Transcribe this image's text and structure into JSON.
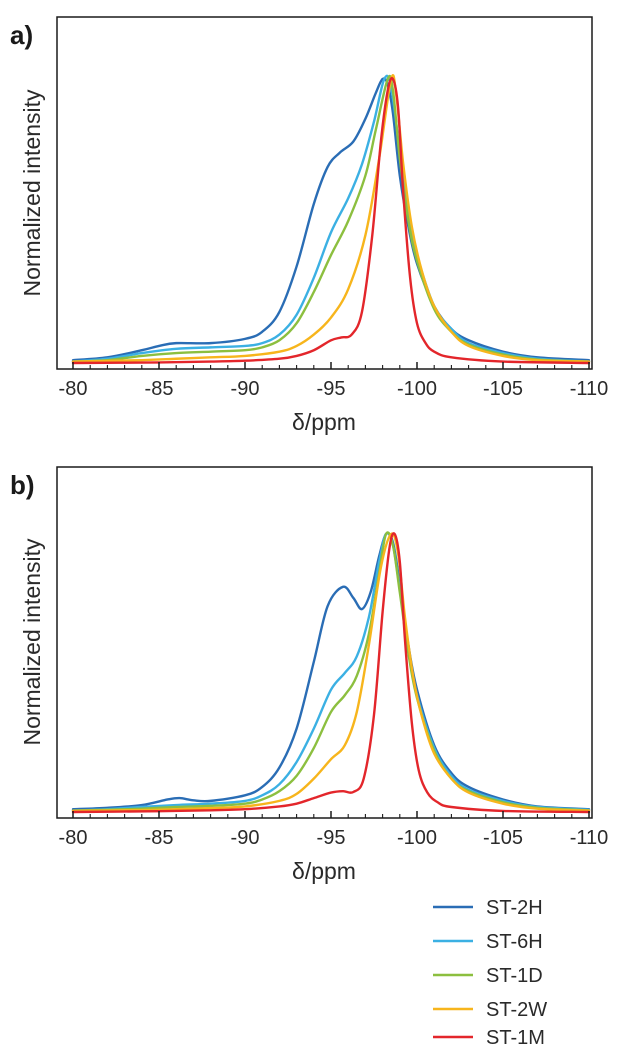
{
  "colors": {
    "ST-2H": "#2a6db5",
    "ST-6H": "#3bb0e3",
    "ST-1D": "#8cbf3f",
    "ST-2W": "#f7b51c",
    "ST-1M": "#e3262b"
  },
  "legend": {
    "placement": "bottom-right",
    "entries": [
      "ST-2H",
      "ST-6H",
      "ST-1D",
      "ST-2W",
      "ST-1M"
    ]
  },
  "chart_data": [
    {
      "type": "line",
      "panel_label": "a)",
      "xlabel": "δ/ppm",
      "ylabel": "Normalized intensity",
      "xlim": [
        -80,
        -110
      ],
      "xticks": [
        "-80",
        "-85",
        "-90",
        "-95",
        "-100",
        "-105",
        "-110"
      ],
      "ylim": [
        0,
        1.1
      ],
      "grid": false,
      "series": [
        {
          "name": "ST-2H",
          "x": [
            -80,
            -82,
            -84,
            -85,
            -86,
            -88,
            -90,
            -91,
            -92,
            -93,
            -94,
            -94.8,
            -95.5,
            -96.3,
            -97,
            -97.6,
            -98,
            -98.3,
            -98.6,
            -99,
            -99.5,
            -100,
            -101,
            -102,
            -103,
            -105,
            -107,
            -110
          ],
          "y": [
            0.01,
            0.02,
            0.045,
            0.06,
            0.07,
            0.07,
            0.085,
            0.11,
            0.18,
            0.34,
            0.56,
            0.69,
            0.74,
            0.78,
            0.86,
            0.95,
            1.0,
            0.98,
            0.88,
            0.66,
            0.48,
            0.35,
            0.2,
            0.12,
            0.08,
            0.04,
            0.02,
            0.01
          ]
        },
        {
          "name": "ST-6H",
          "x": [
            -80,
            -82,
            -84,
            -86,
            -88,
            -90,
            -91,
            -92,
            -93,
            -94,
            -95,
            -96,
            -96.8,
            -97.5,
            -98.1,
            -98.5,
            -99,
            -99.5,
            -100,
            -101,
            -102,
            -103,
            -105,
            -107,
            -110
          ],
          "y": [
            0.005,
            0.015,
            0.035,
            0.05,
            0.055,
            0.06,
            0.07,
            0.1,
            0.17,
            0.3,
            0.46,
            0.58,
            0.7,
            0.85,
            1.0,
            0.97,
            0.74,
            0.52,
            0.38,
            0.2,
            0.12,
            0.07,
            0.035,
            0.015,
            0.005
          ]
        },
        {
          "name": "ST-1D",
          "x": [
            -80,
            -82,
            -84,
            -86,
            -88,
            -90,
            -91,
            -92,
            -93,
            -94,
            -95,
            -96,
            -97,
            -97.6,
            -98.3,
            -98.6,
            -99,
            -99.5,
            -100,
            -101,
            -102,
            -103,
            -105,
            -107,
            -110
          ],
          "y": [
            0.005,
            0.01,
            0.025,
            0.035,
            0.04,
            0.045,
            0.055,
            0.08,
            0.14,
            0.25,
            0.38,
            0.5,
            0.66,
            0.82,
            1.0,
            0.96,
            0.72,
            0.5,
            0.36,
            0.19,
            0.11,
            0.065,
            0.03,
            0.012,
            0.005
          ]
        },
        {
          "name": "ST-2W",
          "x": [
            -80,
            -84,
            -86,
            -88,
            -90,
            -92,
            -93,
            -94,
            -95,
            -96,
            -97,
            -97.8,
            -98.5,
            -98.8,
            -99.2,
            -99.7,
            -100.3,
            -101,
            -102,
            -103,
            -105,
            -107,
            -110
          ],
          "y": [
            0.005,
            0.01,
            0.015,
            0.02,
            0.025,
            0.04,
            0.06,
            0.1,
            0.16,
            0.26,
            0.45,
            0.72,
            1.0,
            0.94,
            0.7,
            0.48,
            0.32,
            0.2,
            0.11,
            0.06,
            0.025,
            0.01,
            0.005
          ]
        },
        {
          "name": "ST-1M",
          "x": [
            -80,
            -85,
            -88,
            -90,
            -92,
            -93,
            -94,
            -95,
            -95.6,
            -96.2,
            -96.8,
            -97.4,
            -97.9,
            -98.3,
            -98.6,
            -98.9,
            -99.2,
            -99.6,
            -100,
            -100.5,
            -101,
            -102,
            -105,
            -110
          ],
          "y": [
            0.0,
            0.002,
            0.005,
            0.008,
            0.015,
            0.025,
            0.045,
            0.08,
            0.09,
            0.1,
            0.18,
            0.45,
            0.78,
            0.96,
            1.0,
            0.9,
            0.6,
            0.3,
            0.14,
            0.07,
            0.04,
            0.02,
            0.005,
            0.0
          ]
        }
      ]
    },
    {
      "type": "line",
      "panel_label": "b)",
      "xlabel": "δ/ppm",
      "ylabel": "Normalized intensity",
      "xlim": [
        -80,
        -110
      ],
      "xticks": [
        "-80",
        "-85",
        "-90",
        "-95",
        "-100",
        "-105",
        "-110"
      ],
      "ylim": [
        0,
        1.1
      ],
      "grid": false,
      "series": [
        {
          "name": "ST-2H",
          "x": [
            -80,
            -82,
            -84,
            -85.5,
            -86.2,
            -87,
            -88,
            -90,
            -91,
            -92,
            -93,
            -94,
            -94.8,
            -95.7,
            -96.3,
            -96.8,
            -97.3,
            -97.8,
            -98.2,
            -98.6,
            -99,
            -99.5,
            -100,
            -101,
            -102,
            -103,
            -105,
            -107,
            -110
          ],
          "y": [
            0.01,
            0.015,
            0.025,
            0.045,
            0.05,
            0.042,
            0.04,
            0.06,
            0.09,
            0.16,
            0.3,
            0.54,
            0.74,
            0.81,
            0.77,
            0.73,
            0.79,
            0.92,
            1.0,
            0.97,
            0.82,
            0.6,
            0.44,
            0.24,
            0.14,
            0.09,
            0.045,
            0.02,
            0.01
          ]
        },
        {
          "name": "ST-6H",
          "x": [
            -80,
            -82,
            -84,
            -86,
            -88,
            -90,
            -91,
            -92,
            -93,
            -94,
            -95,
            -95.8,
            -96.5,
            -97.2,
            -97.8,
            -98.2,
            -98.6,
            -99,
            -99.5,
            -100,
            -101,
            -102,
            -103,
            -105,
            -107,
            -110
          ],
          "y": [
            0.005,
            0.01,
            0.018,
            0.025,
            0.03,
            0.04,
            0.06,
            0.1,
            0.18,
            0.3,
            0.44,
            0.5,
            0.56,
            0.7,
            0.9,
            1.0,
            0.96,
            0.8,
            0.58,
            0.42,
            0.23,
            0.13,
            0.08,
            0.04,
            0.018,
            0.008
          ]
        },
        {
          "name": "ST-1D",
          "x": [
            -80,
            -82,
            -84,
            -86,
            -88,
            -90,
            -91,
            -92,
            -93,
            -94,
            -95,
            -95.8,
            -96.5,
            -97.2,
            -97.8,
            -98.2,
            -98.6,
            -99,
            -99.5,
            -100,
            -101,
            -102,
            -103,
            -105,
            -107,
            -110
          ],
          "y": [
            0.005,
            0.008,
            0.012,
            0.018,
            0.022,
            0.03,
            0.045,
            0.075,
            0.13,
            0.23,
            0.36,
            0.42,
            0.49,
            0.64,
            0.86,
            1.0,
            0.96,
            0.79,
            0.57,
            0.41,
            0.22,
            0.12,
            0.075,
            0.035,
            0.015,
            0.006
          ]
        },
        {
          "name": "ST-2W",
          "x": [
            -80,
            -84,
            -86,
            -88,
            -90,
            -92,
            -93,
            -94,
            -95,
            -95.8,
            -96.5,
            -97.2,
            -97.9,
            -98.5,
            -98.9,
            -99.3,
            -99.8,
            -100.3,
            -101,
            -102,
            -103,
            -105,
            -107,
            -110
          ],
          "y": [
            0.004,
            0.007,
            0.01,
            0.014,
            0.02,
            0.04,
            0.065,
            0.12,
            0.19,
            0.24,
            0.36,
            0.6,
            0.88,
            1.0,
            0.93,
            0.7,
            0.48,
            0.34,
            0.21,
            0.12,
            0.07,
            0.03,
            0.012,
            0.005
          ]
        },
        {
          "name": "ST-1M",
          "x": [
            -80,
            -85,
            -88,
            -90,
            -92,
            -93,
            -94,
            -95,
            -95.7,
            -96.3,
            -96.9,
            -97.5,
            -98,
            -98.4,
            -98.7,
            -99,
            -99.3,
            -99.7,
            -100.1,
            -100.6,
            -101.2,
            -102,
            -105,
            -110
          ],
          "y": [
            0.0,
            0.003,
            0.006,
            0.01,
            0.02,
            0.03,
            0.05,
            0.07,
            0.075,
            0.072,
            0.12,
            0.35,
            0.72,
            0.95,
            1.0,
            0.9,
            0.62,
            0.32,
            0.15,
            0.07,
            0.035,
            0.018,
            0.004,
            0.0
          ]
        }
      ]
    }
  ]
}
